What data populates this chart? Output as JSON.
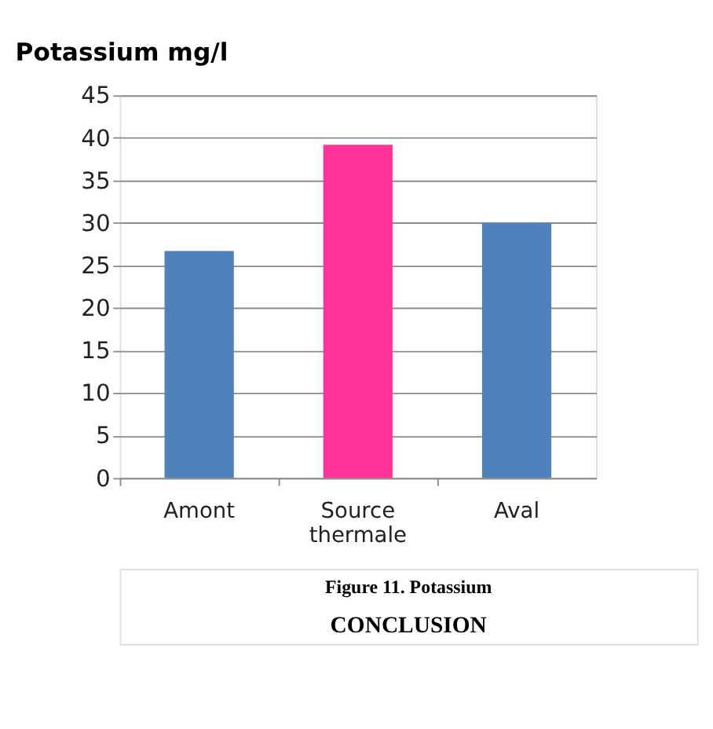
{
  "chart_data": {
    "type": "bar",
    "title": "Potassium mg/l",
    "categories": [
      "Amont",
      "Source thermale",
      "Aval"
    ],
    "values": [
      26.7,
      39.2,
      30
    ],
    "colors": [
      "#4f81bd",
      "#ff3399",
      "#4f81bd"
    ],
    "ylim": [
      0,
      45
    ],
    "yticks": [
      0,
      5,
      10,
      15,
      20,
      25,
      30,
      35,
      40,
      45
    ],
    "grid": "y",
    "annotations": [
      "Figure 11. Potassium",
      "CONCLUSION"
    ]
  }
}
